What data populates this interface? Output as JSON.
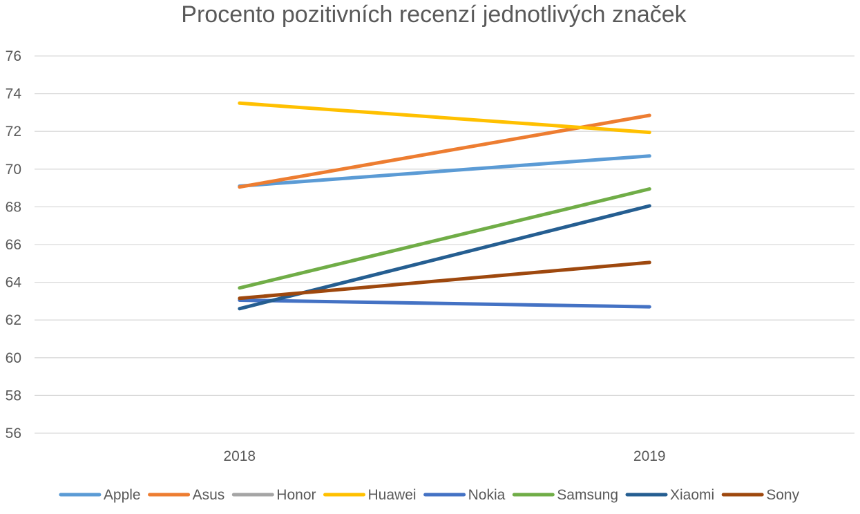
{
  "chart_data": {
    "type": "line",
    "title": "Procento pozitivních recenzí jednotlivých značek",
    "xlabel": "",
    "ylabel": "",
    "categories": [
      "2018",
      "2019"
    ],
    "ylim": [
      56,
      76
    ],
    "yticks": [
      "56",
      "58",
      "60",
      "62",
      "64",
      "66",
      "68",
      "70",
      "72",
      "74",
      "76"
    ],
    "grid": true,
    "legend_position": "bottom",
    "series": [
      {
        "name": "Apple",
        "color": "#5B9BD5",
        "values": [
          69.1,
          70.7
        ]
      },
      {
        "name": "Asus",
        "color": "#ED7D31",
        "values": [
          69.05,
          72.85
        ]
      },
      {
        "name": "Honor",
        "color": "#A5A5A5",
        "values": [
          null,
          null
        ]
      },
      {
        "name": "Huawei",
        "color": "#FFC000",
        "values": [
          73.5,
          71.95
        ]
      },
      {
        "name": "Nokia",
        "color": "#4472C4",
        "values": [
          63.05,
          62.7
        ]
      },
      {
        "name": "Samsung",
        "color": "#70AD47",
        "values": [
          63.7,
          68.95
        ]
      },
      {
        "name": "Xiaomi",
        "color": "#255E91",
        "values": [
          62.6,
          68.05
        ]
      },
      {
        "name": "Sony",
        "color": "#9E480E",
        "values": [
          63.15,
          65.05
        ]
      }
    ]
  }
}
